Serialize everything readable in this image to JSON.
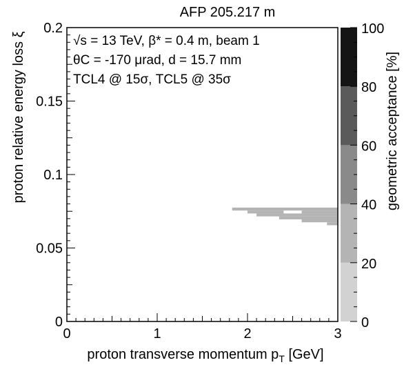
{
  "chart_data": {
    "type": "heatmap",
    "title": "AFP 205.217 m",
    "xlabel": "proton transverse momentum p",
    "xlabel_sub": "T",
    "xlabel_unit": "[GeV]",
    "ylabel": "proton relative energy loss ξ",
    "zlabel": "geometric acceptance [%]",
    "xlim": [
      0,
      3
    ],
    "ylim": [
      0,
      0.2
    ],
    "zlim": [
      0,
      100
    ],
    "x_ticks": [
      "0",
      "1",
      "2",
      "3"
    ],
    "y_ticks": [
      "0",
      "0.05",
      "0.1",
      "0.15",
      "0.2"
    ],
    "z_ticks": [
      "0",
      "20",
      "40",
      "60",
      "80",
      "100"
    ],
    "annotations": [
      "√s = 13 TeV, β* = 0.4 m, beam 1",
      "θC = -170 μrad, d = 15.7 mm",
      "TCL4 @ 15σ, TCL5 @ 35σ"
    ],
    "color_scale": [
      {
        "range": [
          0,
          20
        ],
        "color": "#d2d2d2"
      },
      {
        "range": [
          20,
          40
        ],
        "color": "#b4b4b4"
      },
      {
        "range": [
          40,
          60
        ],
        "color": "#8a8a8a"
      },
      {
        "range": [
          60,
          80
        ],
        "color": "#5a5a5a"
      },
      {
        "range": [
          80,
          100
        ],
        "color": "#141414"
      }
    ],
    "cells": [
      {
        "x": [
          1.83,
          3.0
        ],
        "y": [
          0.0755,
          0.0775
        ],
        "value": 30
      },
      {
        "x": [
          2.0,
          2.4
        ],
        "y": [
          0.0735,
          0.0755
        ],
        "value": 30
      },
      {
        "x": [
          2.6,
          3.0
        ],
        "y": [
          0.0735,
          0.0755
        ],
        "value": 30
      },
      {
        "x": [
          2.1,
          3.0
        ],
        "y": [
          0.0715,
          0.0735
        ],
        "value": 30
      },
      {
        "x": [
          2.35,
          3.0
        ],
        "y": [
          0.0695,
          0.0715
        ],
        "value": 30
      },
      {
        "x": [
          2.6,
          3.0
        ],
        "y": [
          0.0675,
          0.0695
        ],
        "value": 30
      },
      {
        "x": [
          2.88,
          3.0
        ],
        "y": [
          0.0655,
          0.0675
        ],
        "value": 30
      }
    ]
  }
}
